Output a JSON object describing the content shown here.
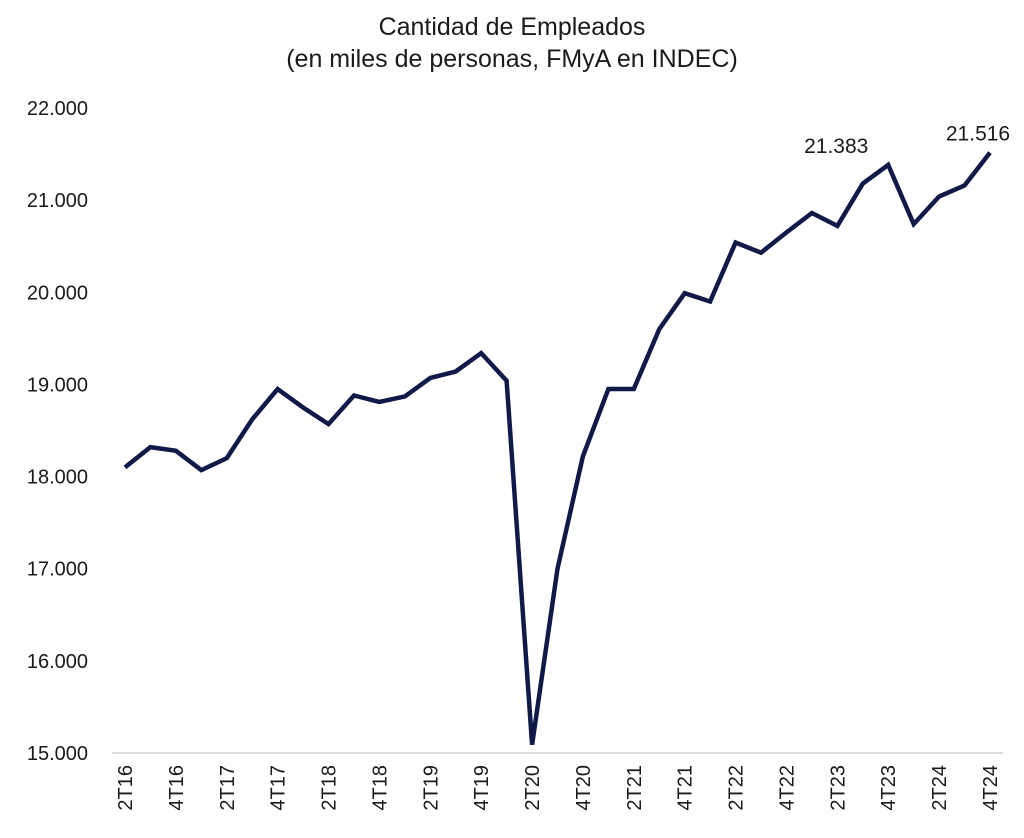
{
  "chart_data": {
    "type": "line",
    "title": "Cantidad de Empleados",
    "subtitle": "(en miles de personas, FMyA  en INDEC)",
    "xlabel": "",
    "ylabel": "",
    "ylim": [
      15000,
      22000
    ],
    "yticks": [
      15000,
      16000,
      17000,
      18000,
      19000,
      20000,
      21000,
      22000
    ],
    "ytick_labels": [
      "15.000",
      "16.000",
      "17.000",
      "18.000",
      "19.000",
      "20.000",
      "21.000",
      "22.000"
    ],
    "grid": false,
    "legend": "none",
    "categories": [
      "2T16",
      "3T16",
      "4T16",
      "1T17",
      "2T17",
      "3T17",
      "4T17",
      "1T18",
      "2T18",
      "3T18",
      "4T18",
      "1T19",
      "2T19",
      "3T19",
      "4T19",
      "1T20",
      "2T20",
      "3T20",
      "4T20",
      "1T21",
      "2T21",
      "3T21",
      "4T21",
      "1T22",
      "2T22",
      "3T22",
      "4T22",
      "1T23",
      "2T23",
      "3T23",
      "4T23",
      "1T24",
      "2T24",
      "3T24",
      "4T24"
    ],
    "xtick_labels": [
      "2T16",
      "4T16",
      "2T17",
      "4T17",
      "2T18",
      "4T18",
      "2T19",
      "4T19",
      "2T20",
      "4T20",
      "2T21",
      "4T21",
      "2T22",
      "4T22",
      "2T23",
      "4T23",
      "2T24",
      "4T24"
    ],
    "series": [
      {
        "name": "Empleados",
        "color": "#101a48",
        "values": [
          18100,
          18320,
          18280,
          18070,
          18200,
          18620,
          18950,
          18750,
          18570,
          18880,
          18810,
          18870,
          19070,
          19140,
          19340,
          19040,
          15090,
          17000,
          18220,
          18950,
          18950,
          19600,
          19990,
          19900,
          20540,
          20430,
          20650,
          20860,
          20720,
          21180,
          21383,
          20740,
          21040,
          21160,
          21516
        ]
      }
    ],
    "annotations": [
      {
        "category": "4T23",
        "value": 21383,
        "label": "21.383"
      },
      {
        "category": "4T24",
        "value": 21516,
        "label": "21.516"
      }
    ]
  }
}
